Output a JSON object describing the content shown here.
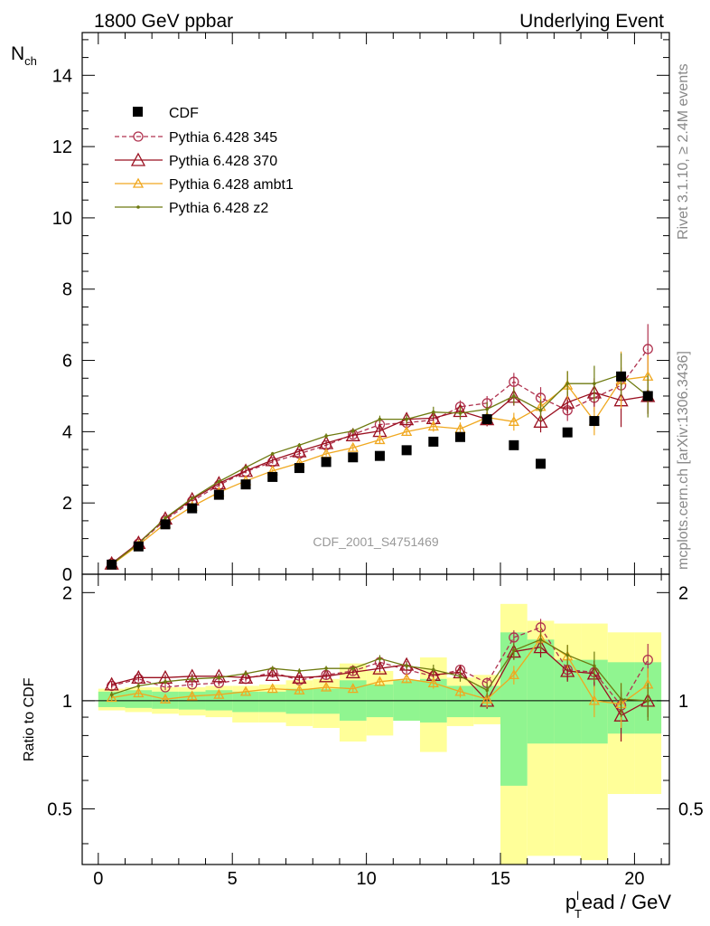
{
  "header": {
    "left": "1800 GeV ppbar",
    "right": "Underlying Event"
  },
  "side_text": {
    "top": "Rivet 3.1.10, ≥ 2.4M events",
    "bottom": "mcplots.cern.ch [arXiv:1306.3436]"
  },
  "watermark": "CDF_2001_S4751469",
  "axes": {
    "main_ylabel_base": "N",
    "main_ylabel_sub": "ch",
    "ratio_ylabel": "Ratio to CDF",
    "xlabel_p": "p",
    "xlabel_sup": "l",
    "xlabel_sub": "T",
    "xlabel_rest": "ead / GeV"
  },
  "colors": {
    "cdf": "#000000",
    "p345": "#b0334f",
    "p370": "#9a1020",
    "ambt1": "#f0a820",
    "z2": "#6e7a10",
    "band_inner": "#90f590",
    "band_outer": "#ffff99"
  },
  "chart_data": [
    {
      "type": "scatter",
      "title": "",
      "xlabel": "plead_T / GeV",
      "ylabel": "N_ch",
      "xlim": [
        -0.6,
        21.3
      ],
      "ylim": [
        0,
        15.2
      ],
      "xticks": [
        0,
        5,
        10,
        15,
        20
      ],
      "yticks": [
        0,
        2,
        4,
        6,
        8,
        10,
        12,
        14
      ],
      "legend_position": "top-left",
      "x": [
        0.5,
        1.5,
        2.5,
        3.5,
        4.5,
        5.5,
        6.5,
        7.5,
        8.5,
        9.5,
        10.5,
        11.5,
        12.5,
        13.5,
        14.5,
        15.5,
        16.5,
        17.5,
        18.5,
        19.5,
        20.5
      ],
      "series": [
        {
          "name": "CDF",
          "key": "cdf",
          "marker": "square",
          "values": [
            0.27,
            0.78,
            1.4,
            1.85,
            2.23,
            2.52,
            2.73,
            2.98,
            3.15,
            3.28,
            3.32,
            3.48,
            3.72,
            3.85,
            4.35,
            3.62,
            3.1,
            3.98,
            4.3,
            5.55,
            5.0
          ]
        },
        {
          "name": "Pythia 6.428 345",
          "key": "p345",
          "marker": "circle",
          "dashed": true,
          "values": [
            0.3,
            0.86,
            1.52,
            2.05,
            2.5,
            2.88,
            3.15,
            3.38,
            3.62,
            3.92,
            4.2,
            4.25,
            4.33,
            4.7,
            4.8,
            5.4,
            4.95,
            4.6,
            4.95,
            5.3,
            6.32
          ],
          "errors": [
            0.02,
            0.03,
            0.03,
            0.04,
            0.05,
            0.05,
            0.05,
            0.06,
            0.07,
            0.08,
            0.1,
            0.12,
            0.15,
            0.18,
            0.2,
            0.25,
            0.3,
            0.3,
            0.4,
            0.5,
            0.7
          ]
        },
        {
          "name": "Pythia 6.428 370",
          "key": "p370",
          "marker": "triangle",
          "values": [
            0.3,
            0.88,
            1.56,
            2.1,
            2.55,
            2.9,
            3.2,
            3.45,
            3.68,
            3.9,
            4.02,
            4.35,
            4.38,
            4.58,
            4.35,
            4.98,
            4.28,
            4.82,
            5.1,
            4.88,
            5.0
          ],
          "errors": [
            0.02,
            0.03,
            0.03,
            0.04,
            0.05,
            0.05,
            0.05,
            0.06,
            0.07,
            0.08,
            0.1,
            0.12,
            0.15,
            0.18,
            0.2,
            0.25,
            0.3,
            0.3,
            0.4,
            0.75,
            0.5
          ]
        },
        {
          "name": "Pythia 6.428 ambt1",
          "key": "ambt1",
          "marker": "triangle-small",
          "values": [
            0.27,
            0.82,
            1.42,
            1.9,
            2.3,
            2.62,
            2.9,
            3.12,
            3.38,
            3.55,
            3.77,
            4.0,
            4.15,
            4.08,
            4.4,
            4.28,
            4.7,
            5.3,
            4.3,
            5.45,
            5.55
          ],
          "errors": [
            0.02,
            0.03,
            0.03,
            0.04,
            0.05,
            0.05,
            0.05,
            0.06,
            0.07,
            0.08,
            0.1,
            0.12,
            0.15,
            0.18,
            0.2,
            0.25,
            0.3,
            0.4,
            0.4,
            0.8,
            0.6
          ]
        },
        {
          "name": "Pythia 6.428 z2",
          "key": "z2",
          "marker": "dot",
          "values": [
            0.28,
            0.86,
            1.58,
            2.13,
            2.6,
            3.0,
            3.38,
            3.62,
            3.88,
            4.02,
            4.35,
            4.35,
            4.55,
            4.52,
            4.63,
            5.0,
            4.6,
            5.35,
            5.35,
            5.6,
            5.0
          ],
          "errors": [
            0.02,
            0.03,
            0.03,
            0.04,
            0.05,
            0.05,
            0.05,
            0.06,
            0.07,
            0.08,
            0.1,
            0.12,
            0.15,
            0.18,
            0.2,
            0.25,
            0.3,
            0.35,
            0.5,
            0.6,
            0.6
          ]
        }
      ]
    },
    {
      "type": "scatter",
      "title": "",
      "xlabel": "plead_T / GeV",
      "ylabel": "Ratio to CDF",
      "xlim": [
        -0.6,
        21.3
      ],
      "ylim": [
        0.35,
        2.25
      ],
      "xticks": [
        0,
        5,
        10,
        15,
        20
      ],
      "yticks": [
        0.5,
        1,
        2
      ],
      "reference_line": 1.0,
      "x": [
        0.5,
        1.5,
        2.5,
        3.5,
        4.5,
        5.5,
        6.5,
        7.5,
        8.5,
        9.5,
        10.5,
        11.5,
        12.5,
        13.5,
        14.5,
        15.5,
        16.5,
        17.5,
        18.5,
        19.5,
        20.5
      ],
      "bands": [
        {
          "name": "inner",
          "key": "band_inner",
          "lower": [
            0.96,
            0.955,
            0.95,
            0.945,
            0.94,
            0.93,
            0.93,
            0.92,
            0.92,
            0.88,
            0.9,
            0.88,
            0.87,
            0.9,
            0.9,
            0.58,
            0.76,
            0.76,
            0.76,
            0.81,
            0.81
          ],
          "upper": [
            1.06,
            1.07,
            1.06,
            1.06,
            1.07,
            1.06,
            1.06,
            1.08,
            1.08,
            1.14,
            1.11,
            1.14,
            1.15,
            1.1,
            1.1,
            1.55,
            1.48,
            1.3,
            1.3,
            1.28,
            1.28
          ]
        },
        {
          "name": "outer",
          "key": "band_outer",
          "lower": [
            0.94,
            0.93,
            0.92,
            0.91,
            0.9,
            0.87,
            0.87,
            0.85,
            0.84,
            0.77,
            0.8,
            0.88,
            0.72,
            0.85,
            0.86,
            0.35,
            0.37,
            0.37,
            0.36,
            0.55,
            0.55
          ],
          "upper": [
            1.08,
            1.09,
            1.09,
            1.09,
            1.1,
            1.1,
            1.11,
            1.14,
            1.15,
            1.27,
            1.21,
            1.14,
            1.32,
            1.16,
            1.18,
            1.86,
            1.67,
            1.64,
            1.64,
            1.55,
            1.55
          ]
        }
      ],
      "series": [
        {
          "name": "Pythia 6.428 345",
          "key": "p345",
          "values": [
            1.1,
            1.15,
            1.09,
            1.11,
            1.12,
            1.15,
            1.2,
            1.14,
            1.18,
            1.21,
            1.28,
            1.22,
            1.17,
            1.22,
            1.12,
            1.5,
            1.6,
            1.22,
            1.2,
            0.97,
            1.3
          ],
          "errors": [
            0.02,
            0.02,
            0.02,
            0.02,
            0.02,
            0.02,
            0.02,
            0.02,
            0.02,
            0.02,
            0.03,
            0.03,
            0.04,
            0.04,
            0.04,
            0.07,
            0.09,
            0.08,
            0.09,
            0.09,
            0.14
          ]
        },
        {
          "name": "Pythia 6.428 370",
          "key": "p370",
          "values": [
            1.11,
            1.16,
            1.16,
            1.17,
            1.17,
            1.16,
            1.18,
            1.16,
            1.17,
            1.2,
            1.23,
            1.26,
            1.18,
            1.2,
            1.0,
            1.37,
            1.41,
            1.21,
            1.19,
            0.91,
            1.0
          ],
          "errors": [
            0.02,
            0.02,
            0.02,
            0.02,
            0.02,
            0.02,
            0.02,
            0.02,
            0.02,
            0.02,
            0.03,
            0.03,
            0.04,
            0.04,
            0.05,
            0.07,
            0.09,
            0.08,
            0.1,
            0.14,
            0.1
          ]
        },
        {
          "name": "Pythia 6.428 ambt1",
          "key": "ambt1",
          "values": [
            1.02,
            1.05,
            1.01,
            1.03,
            1.04,
            1.06,
            1.08,
            1.07,
            1.09,
            1.08,
            1.13,
            1.15,
            1.12,
            1.06,
            1.01,
            1.18,
            1.49,
            1.33,
            1.0,
            0.98,
            1.11
          ],
          "errors": [
            0.02,
            0.02,
            0.02,
            0.02,
            0.02,
            0.02,
            0.02,
            0.02,
            0.02,
            0.02,
            0.03,
            0.03,
            0.04,
            0.04,
            0.05,
            0.07,
            0.1,
            0.1,
            0.1,
            0.14,
            0.12
          ]
        },
        {
          "name": "Pythia 6.428 z2",
          "key": "z2",
          "values": [
            1.04,
            1.1,
            1.13,
            1.15,
            1.16,
            1.19,
            1.23,
            1.21,
            1.23,
            1.23,
            1.31,
            1.25,
            1.22,
            1.17,
            1.07,
            1.38,
            1.48,
            1.34,
            1.25,
            1.01,
            1.0
          ],
          "errors": [
            0.02,
            0.02,
            0.02,
            0.02,
            0.02,
            0.02,
            0.02,
            0.02,
            0.02,
            0.02,
            0.03,
            0.03,
            0.04,
            0.04,
            0.05,
            0.07,
            0.1,
            0.09,
            0.12,
            0.11,
            0.12
          ]
        }
      ]
    }
  ]
}
